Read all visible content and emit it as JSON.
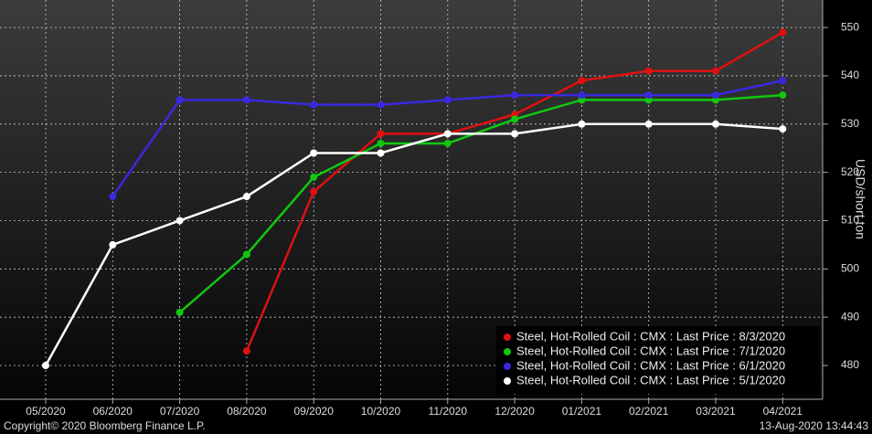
{
  "chart_data": {
    "type": "line",
    "y_label": "USD/short ton",
    "categories": [
      "05/2020",
      "06/2020",
      "07/2020",
      "08/2020",
      "09/2020",
      "10/2020",
      "11/2020",
      "12/2020",
      "01/2021",
      "02/2021",
      "03/2021",
      "04/2021"
    ],
    "series": [
      {
        "name": "Steel, Hot-Rolled Coil : CMX : Last Price : 8/3/2020",
        "color": "#e01010",
        "values": [
          null,
          null,
          null,
          483,
          516,
          528,
          528,
          532,
          539,
          541,
          541,
          549
        ]
      },
      {
        "name": "Steel, Hot-Rolled Coil : CMX : Last Price : 7/1/2020",
        "color": "#10c810",
        "values": [
          null,
          null,
          491,
          503,
          519,
          526,
          526,
          531,
          535,
          535,
          535,
          536
        ]
      },
      {
        "name": "Steel, Hot-Rolled Coil : CMX : Last Price : 6/1/2020",
        "color": "#3a28e0",
        "values": [
          null,
          515,
          535,
          535,
          534,
          534,
          535,
          536,
          536,
          536,
          536,
          539
        ]
      },
      {
        "name": "Steel, Hot-Rolled Coil : CMX : Last Price : 5/1/2020",
        "color": "#ffffff",
        "values": [
          480,
          505,
          510,
          515,
          524,
          524,
          528,
          528,
          530,
          530,
          530,
          529
        ]
      }
    ],
    "ylim": [
      473,
      555.7
    ],
    "yticks": [
      480,
      490,
      500,
      510,
      520,
      530,
      540,
      550
    ],
    "grid": true,
    "legend": "bottom-right",
    "footer_left": "Copyright© 2020 Bloomberg Finance L.P.",
    "footer_right": "13-Aug-2020 13:44:43"
  }
}
